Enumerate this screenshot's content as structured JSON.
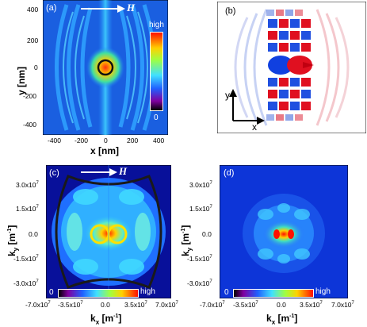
{
  "panels": {
    "a": {
      "label": "(a)",
      "field_label": "H",
      "colorbar_high": "high",
      "colorbar_low": "0",
      "x_label": "x [nm]",
      "y_label": "y [nm]",
      "x_ticks": [
        "-400",
        "-200",
        "0",
        "200",
        "400"
      ],
      "y_ticks": [
        "400",
        "200",
        "0",
        "-200",
        "-400"
      ]
    },
    "b": {
      "label": "(b)",
      "axis_y": "y",
      "axis_x": "x"
    },
    "c": {
      "label": "(c)",
      "field_label": "H",
      "colorbar_low": "0",
      "colorbar_high": "high",
      "x_label_main": "k",
      "x_label_sub": "x",
      "x_label_unit": " [m",
      "x_label_exp": "-1",
      "x_label_end": "]",
      "y_label_main": "k",
      "y_label_sub": "y",
      "y_label_unit": " [m",
      "y_label_exp": "-1",
      "y_label_end": "]",
      "x_ticks": [
        "-7.0x10",
        "-3.5x10",
        "0.0",
        "3.5x10",
        "7.0x10"
      ],
      "x_ticks_exp": [
        "7",
        "7",
        "",
        "7",
        "7"
      ],
      "y_ticks": [
        "3.0x10",
        "1.5x10",
        "0.0",
        "-1.5x10",
        "-3.0x10"
      ],
      "y_ticks_exp": [
        "7",
        "7",
        "",
        "7",
        "7"
      ]
    },
    "d": {
      "label": "(d)",
      "colorbar_low": "0",
      "colorbar_high": "high",
      "x_label_main": "k",
      "x_label_sub": "x",
      "x_label_unit": " [m",
      "x_label_exp": "-1",
      "x_label_end": "]",
      "y_label_main": "k",
      "y_label_sub": "y",
      "y_label_unit": " [m",
      "y_label_exp": "-1",
      "y_label_end": "]",
      "x_ticks": [
        "-7.0x10",
        "-3.5x10",
        "0.0",
        "3.5x10",
        "7.0x10"
      ],
      "x_ticks_exp": [
        "7",
        "7",
        "",
        "7",
        "7"
      ],
      "y_ticks": [
        "3.0x10",
        "1.5x10",
        "0.0",
        "-1.5x10",
        "-3.0x10"
      ],
      "y_ticks_exp": [
        "7",
        "7",
        "",
        "7",
        "7"
      ]
    }
  },
  "colors": {
    "map_background": "#1133cc",
    "field_arrow": "#ffffff",
    "ring_a": "#111111",
    "ring_c_outer": "#222222",
    "ring_c_inner": "#ffe000",
    "positive": "#e01020",
    "negative": "#1040e0"
  }
}
